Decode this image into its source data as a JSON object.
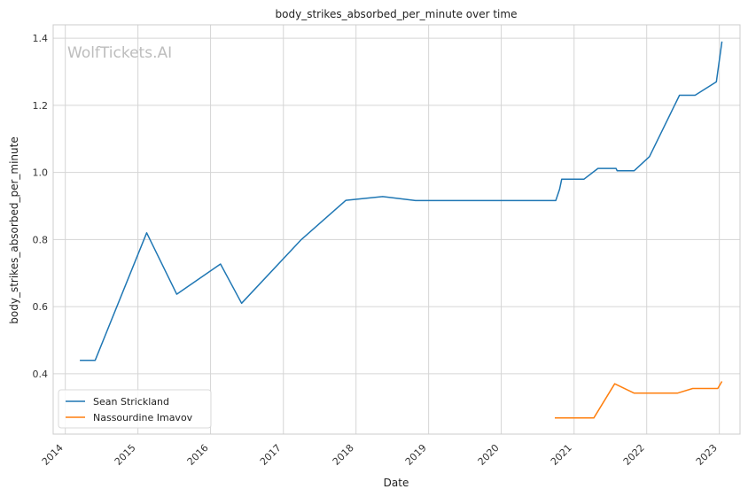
{
  "chart_data": {
    "type": "line",
    "title": "body_strikes_absorbed_per_minute over time",
    "xlabel": "Date",
    "ylabel": "body_strikes_absorbed_per_minute",
    "watermark": "WolfTickets.AI",
    "xlim": [
      "2013-11-01",
      "2023-04-15"
    ],
    "ylim": [
      0.22,
      1.44
    ],
    "x_ticks": [
      "2014-01-01",
      "2015-01-01",
      "2016-01-01",
      "2017-01-01",
      "2018-01-01",
      "2019-01-01",
      "2020-01-01",
      "2021-01-01",
      "2022-01-01",
      "2023-01-01"
    ],
    "x_tick_labels": [
      "2014",
      "2015",
      "2016",
      "2017",
      "2018",
      "2019",
      "2020",
      "2021",
      "2022",
      "2023"
    ],
    "y_ticks": [
      0.4,
      0.6,
      0.8,
      1.0,
      1.2,
      1.4
    ],
    "y_tick_labels": [
      "0.4",
      "0.6",
      "0.8",
      "1.0",
      "1.2",
      "1.4"
    ],
    "grid": true,
    "legend_position": "bottom-left",
    "series": [
      {
        "name": "Sean Strickland",
        "color": "#1f77b4",
        "points": [
          {
            "x": "2014-03-15",
            "y": 0.44
          },
          {
            "x": "2014-05-31",
            "y": 0.44
          },
          {
            "x": "2015-02-14",
            "y": 0.82
          },
          {
            "x": "2015-07-15",
            "y": 0.637
          },
          {
            "x": "2016-02-20",
            "y": 0.727
          },
          {
            "x": "2016-06-05",
            "y": 0.61
          },
          {
            "x": "2017-04-01",
            "y": 0.8
          },
          {
            "x": "2017-11-11",
            "y": 0.917
          },
          {
            "x": "2018-05-15",
            "y": 0.928
          },
          {
            "x": "2018-10-27",
            "y": 0.916
          },
          {
            "x": "2020-10-01",
            "y": 0.916
          },
          {
            "x": "2020-10-20",
            "y": 0.95
          },
          {
            "x": "2020-10-31",
            "y": 0.98
          },
          {
            "x": "2021-02-20",
            "y": 0.98
          },
          {
            "x": "2021-05-01",
            "y": 1.012
          },
          {
            "x": "2021-07-31",
            "y": 1.012
          },
          {
            "x": "2021-08-05",
            "y": 1.005
          },
          {
            "x": "2021-10-30",
            "y": 1.005
          },
          {
            "x": "2022-01-15",
            "y": 1.047
          },
          {
            "x": "2022-06-15",
            "y": 1.23
          },
          {
            "x": "2022-09-01",
            "y": 1.23
          },
          {
            "x": "2022-12-17",
            "y": 1.27
          },
          {
            "x": "2023-01-14",
            "y": 1.39
          }
        ]
      },
      {
        "name": "Nassourdine Imavov",
        "color": "#ff7f0e",
        "points": [
          {
            "x": "2020-09-26",
            "y": 0.268
          },
          {
            "x": "2021-04-10",
            "y": 0.268
          },
          {
            "x": "2021-07-24",
            "y": 0.37
          },
          {
            "x": "2021-10-30",
            "y": 0.342
          },
          {
            "x": "2022-06-04",
            "y": 0.342
          },
          {
            "x": "2022-08-20",
            "y": 0.356
          },
          {
            "x": "2022-12-24",
            "y": 0.356
          },
          {
            "x": "2023-01-14",
            "y": 0.377
          }
        ]
      }
    ]
  }
}
